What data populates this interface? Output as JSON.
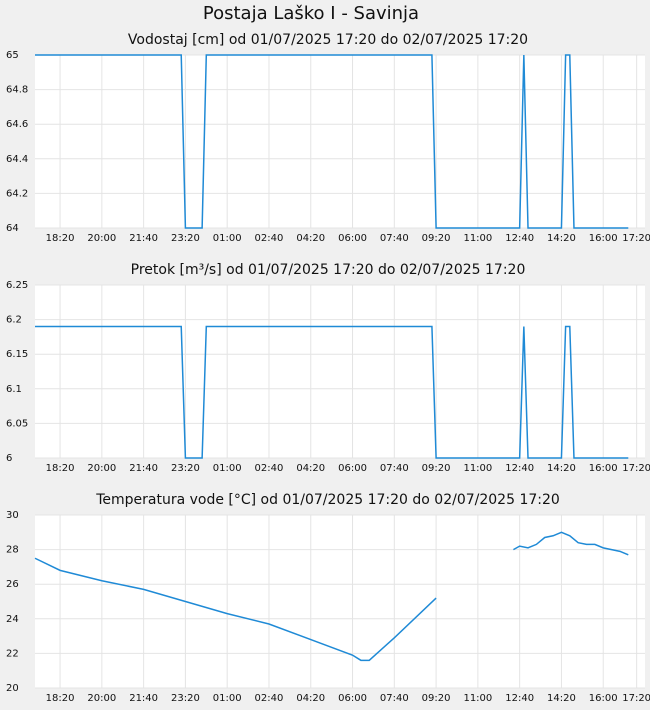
{
  "title": "Postaja Laško I - Savinja",
  "chart_data": [
    {
      "type": "line",
      "title": "Vodostaj [cm] od 01/07/2025 17:20 do 02/07/2025 17:20",
      "x": [
        "2025-07-01T17:20",
        "2025-07-01T23:10",
        "2025-07-01T23:20",
        "2025-07-02T00:00",
        "2025-07-02T00:10",
        "2025-07-02T09:10",
        "2025-07-02T09:20",
        "2025-07-02T12:40",
        "2025-07-02T12:50",
        "2025-07-02T13:00",
        "2025-07-02T14:20",
        "2025-07-02T14:30",
        "2025-07-02T14:40",
        "2025-07-02T14:50",
        "2025-07-02T17:00"
      ],
      "series": [
        {
          "color": "#1f8ad6",
          "values": [
            65,
            65,
            64,
            64,
            65,
            65,
            64,
            64,
            65,
            64,
            64,
            65,
            65,
            64,
            64
          ]
        }
      ],
      "xlim": [
        "2025-07-01T17:20",
        "2025-07-02T17:40"
      ],
      "xticks": [
        {
          "value": "2025-07-01T18:20",
          "label": "18:20"
        },
        {
          "value": "2025-07-01T20:00",
          "label": "20:00"
        },
        {
          "value": "2025-07-01T21:40",
          "label": "21:40"
        },
        {
          "value": "2025-07-01T23:20",
          "label": "23:20"
        },
        {
          "value": "2025-07-02T01:00",
          "label": "01:00"
        },
        {
          "value": "2025-07-02T02:40",
          "label": "02:40"
        },
        {
          "value": "2025-07-02T04:20",
          "label": "04:20"
        },
        {
          "value": "2025-07-02T06:00",
          "label": "06:00"
        },
        {
          "value": "2025-07-02T07:40",
          "label": "07:40"
        },
        {
          "value": "2025-07-02T09:20",
          "label": "09:20"
        },
        {
          "value": "2025-07-02T11:00",
          "label": "11:00"
        },
        {
          "value": "2025-07-02T12:40",
          "label": "12:40"
        },
        {
          "value": "2025-07-02T14:20",
          "label": "14:20"
        },
        {
          "value": "2025-07-02T16:00",
          "label": "16:00"
        },
        {
          "value": "2025-07-02T17:20",
          "label": "17:20"
        }
      ],
      "ylim": [
        64,
        65
      ],
      "yticks": [
        64,
        64.2,
        64.4,
        64.6,
        64.8,
        65
      ],
      "grid": true
    },
    {
      "type": "line",
      "title": "Pretok [m³/s] od 01/07/2025 17:20 do 02/07/2025 17:20",
      "x": [
        "2025-07-01T17:20",
        "2025-07-01T23:10",
        "2025-07-01T23:20",
        "2025-07-02T00:00",
        "2025-07-02T00:10",
        "2025-07-02T09:10",
        "2025-07-02T09:20",
        "2025-07-02T12:40",
        "2025-07-02T12:50",
        "2025-07-02T13:00",
        "2025-07-02T14:20",
        "2025-07-02T14:30",
        "2025-07-02T14:40",
        "2025-07-02T14:50",
        "2025-07-02T17:00"
      ],
      "series": [
        {
          "color": "#1f8ad6",
          "values": [
            6.19,
            6.19,
            6,
            6,
            6.19,
            6.19,
            6,
            6,
            6.19,
            6,
            6,
            6.19,
            6.19,
            6,
            6
          ]
        }
      ],
      "xlim": [
        "2025-07-01T17:20",
        "2025-07-02T17:40"
      ],
      "xticks": [
        {
          "value": "2025-07-01T18:20",
          "label": "18:20"
        },
        {
          "value": "2025-07-01T20:00",
          "label": "20:00"
        },
        {
          "value": "2025-07-01T21:40",
          "label": "21:40"
        },
        {
          "value": "2025-07-01T23:20",
          "label": "23:20"
        },
        {
          "value": "2025-07-02T01:00",
          "label": "01:00"
        },
        {
          "value": "2025-07-02T02:40",
          "label": "02:40"
        },
        {
          "value": "2025-07-02T04:20",
          "label": "04:20"
        },
        {
          "value": "2025-07-02T06:00",
          "label": "06:00"
        },
        {
          "value": "2025-07-02T07:40",
          "label": "07:40"
        },
        {
          "value": "2025-07-02T09:20",
          "label": "09:20"
        },
        {
          "value": "2025-07-02T11:00",
          "label": "11:00"
        },
        {
          "value": "2025-07-02T12:40",
          "label": "12:40"
        },
        {
          "value": "2025-07-02T14:20",
          "label": "14:20"
        },
        {
          "value": "2025-07-02T16:00",
          "label": "16:00"
        },
        {
          "value": "2025-07-02T17:20",
          "label": "17:20"
        }
      ],
      "ylim": [
        6,
        6.25
      ],
      "yticks": [
        6,
        6.05,
        6.1,
        6.15,
        6.2,
        6.25
      ],
      "grid": true
    },
    {
      "type": "line",
      "title": "Temperatura vode [°C] od 01/07/2025 17:20 do 02/07/2025 17:20",
      "x": [
        "2025-07-01T17:20",
        "2025-07-01T18:20",
        "2025-07-01T20:00",
        "2025-07-01T21:40",
        "2025-07-01T23:20",
        "2025-07-02T01:00",
        "2025-07-02T02:40",
        "2025-07-02T04:20",
        "2025-07-02T06:00",
        "2025-07-02T06:20",
        "2025-07-02T06:40",
        "2025-07-02T07:40",
        "2025-07-02T09:20",
        "2025-07-02T11:00",
        "2025-07-02T12:25",
        "2025-07-02T12:40",
        "2025-07-02T13:00",
        "2025-07-02T13:20",
        "2025-07-02T13:40",
        "2025-07-02T14:00",
        "2025-07-02T14:20",
        "2025-07-02T14:40",
        "2025-07-02T15:00",
        "2025-07-02T15:20",
        "2025-07-02T15:40",
        "2025-07-02T16:00",
        "2025-07-02T16:20",
        "2025-07-02T16:40",
        "2025-07-02T17:00"
      ],
      "series": [
        {
          "color": "#1f8ad6",
          "values": [
            27.5,
            26.8,
            26.2,
            25.7,
            25.0,
            24.3,
            23.7,
            22.8,
            21.9,
            21.6,
            21.6,
            22.9,
            25.2,
            null,
            28.0,
            28.2,
            28.1,
            28.3,
            28.7,
            28.8,
            29.0,
            28.8,
            28.4,
            28.3,
            28.3,
            28.1,
            28.0,
            27.9,
            27.7
          ]
        }
      ],
      "xlim": [
        "2025-07-01T17:20",
        "2025-07-02T17:40"
      ],
      "xticks": [
        {
          "value": "2025-07-01T18:20",
          "label": "18:20"
        },
        {
          "value": "2025-07-01T20:00",
          "label": "20:00"
        },
        {
          "value": "2025-07-01T21:40",
          "label": "21:40"
        },
        {
          "value": "2025-07-01T23:20",
          "label": "23:20"
        },
        {
          "value": "2025-07-02T01:00",
          "label": "01:00"
        },
        {
          "value": "2025-07-02T02:40",
          "label": "02:40"
        },
        {
          "value": "2025-07-02T04:20",
          "label": "04:20"
        },
        {
          "value": "2025-07-02T06:00",
          "label": "06:00"
        },
        {
          "value": "2025-07-02T07:40",
          "label": "07:40"
        },
        {
          "value": "2025-07-02T09:20",
          "label": "09:20"
        },
        {
          "value": "2025-07-02T11:00",
          "label": "11:00"
        },
        {
          "value": "2025-07-02T12:40",
          "label": "12:40"
        },
        {
          "value": "2025-07-02T14:20",
          "label": "14:20"
        },
        {
          "value": "2025-07-02T16:00",
          "label": "16:00"
        },
        {
          "value": "2025-07-02T17:20",
          "label": "17:20"
        }
      ],
      "ylim": [
        20,
        30
      ],
      "yticks": [
        20,
        22,
        24,
        26,
        28,
        30
      ],
      "grid": true
    }
  ]
}
